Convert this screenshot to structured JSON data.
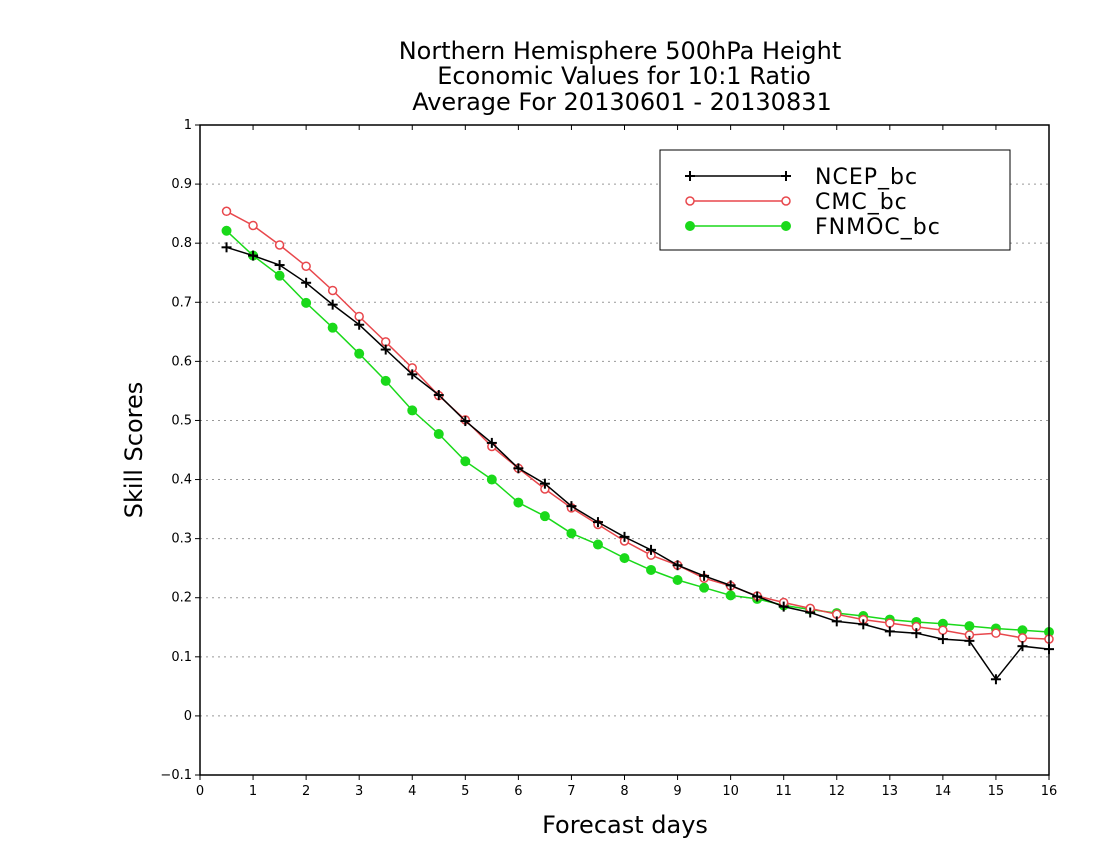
{
  "chart_data": {
    "type": "line",
    "title_lines": [
      "Northern Hemisphere 500hPa Height",
      "Economic Values for 10:1 Ratio",
      "Average For 20130601 - 20130831"
    ],
    "xlabel": "Forecast days",
    "ylabel": "Skill Scores",
    "xlim": [
      0,
      16
    ],
    "ylim": [
      -0.1,
      1
    ],
    "xticks": [
      0,
      1,
      2,
      3,
      4,
      5,
      6,
      7,
      8,
      9,
      10,
      11,
      12,
      13,
      14,
      15,
      16
    ],
    "yticks": [
      -0.1,
      0,
      0.1,
      0.2,
      0.3,
      0.4,
      0.5,
      0.6,
      0.7,
      0.8,
      0.9,
      1
    ],
    "ytick_labels": [
      "−0.1",
      "0",
      "0.1",
      "0.2",
      "0.3",
      "0.4",
      "0.5",
      "0.6",
      "0.7",
      "0.8",
      "0.9",
      "1"
    ],
    "grid": true,
    "legend_position": "top-right",
    "x": [
      0.5,
      1,
      1.5,
      2,
      2.5,
      3,
      3.5,
      4,
      4.5,
      5,
      5.5,
      6,
      6.5,
      7,
      7.5,
      8,
      8.5,
      9,
      9.5,
      10,
      10.5,
      11,
      11.5,
      12,
      12.5,
      13,
      13.5,
      14,
      14.5,
      15,
      15.5,
      16
    ],
    "series": [
      {
        "name": "NCEP_bc",
        "color": "#000000",
        "marker": "plus",
        "values": [
          0.793,
          0.779,
          0.763,
          0.733,
          0.696,
          0.662,
          0.62,
          0.578,
          0.543,
          0.499,
          0.462,
          0.419,
          0.393,
          0.355,
          0.328,
          0.303,
          0.281,
          0.255,
          0.237,
          0.221,
          0.202,
          0.185,
          0.175,
          0.16,
          0.155,
          0.143,
          0.14,
          0.13,
          0.127,
          0.062,
          0.118,
          0.113
        ]
      },
      {
        "name": "CMC_bc",
        "color": "#e8474c",
        "marker": "open-circle",
        "values": [
          0.854,
          0.83,
          0.797,
          0.761,
          0.72,
          0.676,
          0.633,
          0.589,
          0.542,
          0.501,
          0.456,
          0.419,
          0.384,
          0.352,
          0.324,
          0.296,
          0.272,
          0.255,
          0.233,
          0.22,
          0.203,
          0.192,
          0.182,
          0.172,
          0.163,
          0.157,
          0.151,
          0.145,
          0.137,
          0.14,
          0.132,
          0.13
        ]
      },
      {
        "name": "FNMOC_bc",
        "color": "#1ad91a",
        "marker": "filled-circle",
        "values": [
          0.821,
          0.779,
          0.745,
          0.699,
          0.657,
          0.613,
          0.567,
          0.517,
          0.477,
          0.431,
          0.4,
          0.361,
          0.338,
          0.309,
          0.29,
          0.267,
          0.247,
          0.23,
          0.217,
          0.204,
          0.198,
          0.187,
          0.18,
          0.174,
          0.169,
          0.163,
          0.159,
          0.156,
          0.152,
          0.148,
          0.145,
          0.142
        ]
      }
    ]
  }
}
